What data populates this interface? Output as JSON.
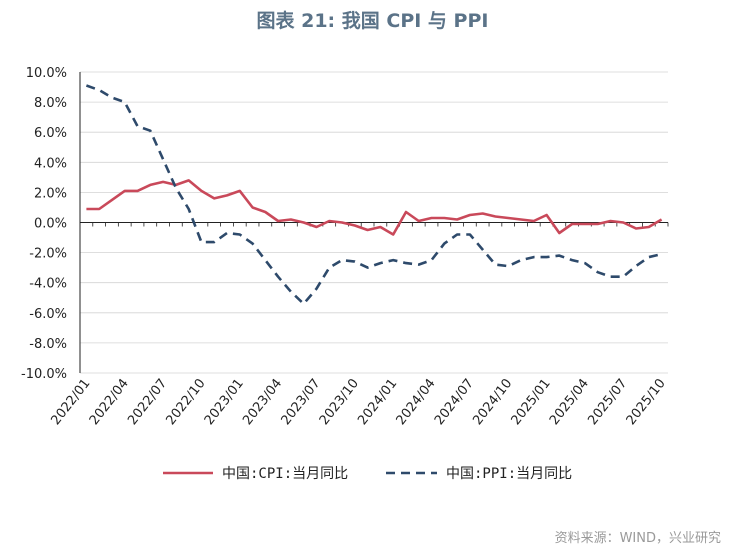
{
  "chart_data": {
    "type": "line",
    "title": "图表 21: 我国 CPI 与 PPI",
    "source": "资料来源：WIND，兴业研究",
    "ylim": [
      -10,
      10
    ],
    "y_ticks": [
      "10.0%",
      "8.0%",
      "6.0%",
      "4.0%",
      "2.0%",
      "0.0%",
      "-2.0%",
      "-4.0%",
      "-6.0%",
      "-8.0%",
      "-10.0%"
    ],
    "x": [
      "2022/01",
      "2022/02",
      "2022/03",
      "2022/04",
      "2022/05",
      "2022/06",
      "2022/07",
      "2022/08",
      "2022/09",
      "2022/10",
      "2022/11",
      "2022/12",
      "2023/01",
      "2023/02",
      "2023/03",
      "2023/04",
      "2023/05",
      "2023/06",
      "2023/07",
      "2023/08",
      "2023/09",
      "2023/10",
      "2023/11",
      "2023/12",
      "2024/01",
      "2024/02",
      "2024/03",
      "2024/04",
      "2024/05",
      "2024/06",
      "2024/07",
      "2024/08",
      "2024/09",
      "2024/10",
      "2024/11",
      "2024/12",
      "2025/01",
      "2025/02",
      "2025/03",
      "2025/04",
      "2025/05",
      "2025/06",
      "2025/07",
      "2025/08",
      "2025/09",
      "2025/10"
    ],
    "x_tick_labels": [
      "2022/01",
      "2022/04",
      "2022/07",
      "2022/10",
      "2023/01",
      "2023/04",
      "2023/07",
      "2023/10",
      "2024/01",
      "2024/04",
      "2024/07",
      "2024/10",
      "2025/01",
      "2025/04",
      "2025/07",
      "2025/10"
    ],
    "grid": true,
    "legend_position": "bottom",
    "series": [
      {
        "name": "中国:CPI:当月同比",
        "color": "#c9495a",
        "style": "solid",
        "values": [
          0.9,
          0.9,
          1.5,
          2.1,
          2.1,
          2.5,
          2.7,
          2.5,
          2.8,
          2.1,
          1.6,
          1.8,
          2.1,
          1.0,
          0.7,
          0.1,
          0.2,
          0.0,
          -0.3,
          0.1,
          0.0,
          -0.2,
          -0.5,
          -0.3,
          -0.8,
          0.7,
          0.1,
          0.3,
          0.3,
          0.2,
          0.5,
          0.6,
          0.4,
          0.3,
          0.2,
          0.1,
          0.5,
          -0.7,
          -0.1,
          -0.1,
          -0.1,
          0.1,
          0.0,
          -0.4,
          -0.3,
          0.2
        ]
      },
      {
        "name": "中国:PPI:当月同比",
        "color": "#2e4a6b",
        "style": "dashed",
        "values": [
          9.1,
          8.8,
          8.3,
          8.0,
          6.4,
          6.1,
          4.2,
          2.3,
          0.9,
          -1.3,
          -1.3,
          -0.7,
          -0.8,
          -1.4,
          -2.5,
          -3.6,
          -4.6,
          -5.4,
          -4.4,
          -3.0,
          -2.5,
          -2.6,
          -3.0,
          -2.7,
          -2.5,
          -2.7,
          -2.8,
          -2.5,
          -1.4,
          -0.8,
          -0.8,
          -1.8,
          -2.8,
          -2.9,
          -2.5,
          -2.3,
          -2.3,
          -2.2,
          -2.5,
          -2.7,
          -3.3,
          -3.6,
          -3.6,
          -2.9,
          -2.3,
          -2.1
        ]
      }
    ]
  }
}
